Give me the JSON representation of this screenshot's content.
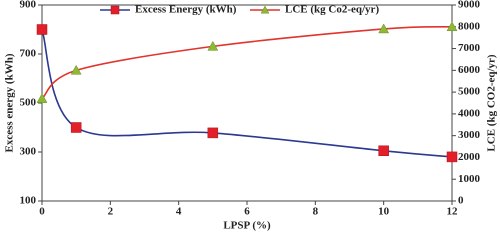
{
  "chart_data": {
    "type": "line",
    "x": [
      0,
      1,
      5,
      10,
      12
    ],
    "xlim": [
      0,
      12
    ],
    "xticks": [
      0,
      2,
      4,
      6,
      8,
      10,
      12
    ],
    "ylim": [
      100,
      900
    ],
    "yticks": [
      100,
      300,
      500,
      700,
      900
    ],
    "y2lim": [
      0,
      9000
    ],
    "y2ticks": [
      0,
      1000,
      2000,
      3000,
      4000,
      5000,
      6000,
      7000,
      8000,
      9000
    ],
    "xlabel": "LPSP (%)",
    "ylabel": "Excess energy (kWh)",
    "y2label": "LCE (kg CO2-eq/yr)",
    "legend": "top",
    "series": [
      {
        "name": "Excess Energy (kWh)",
        "color": "#2b3990",
        "marker_color": "#e3202a",
        "marker": "square",
        "values": [
          800,
          400,
          378,
          305,
          280
        ]
      },
      {
        "name": "LCE (kg Co2-eq/yr)",
        "color": "#e0342c",
        "marker_color": "#8cb936",
        "marker": "triangle",
        "axis": "y2",
        "values": [
          4700,
          6000,
          7100,
          7900,
          8000
        ]
      }
    ]
  }
}
